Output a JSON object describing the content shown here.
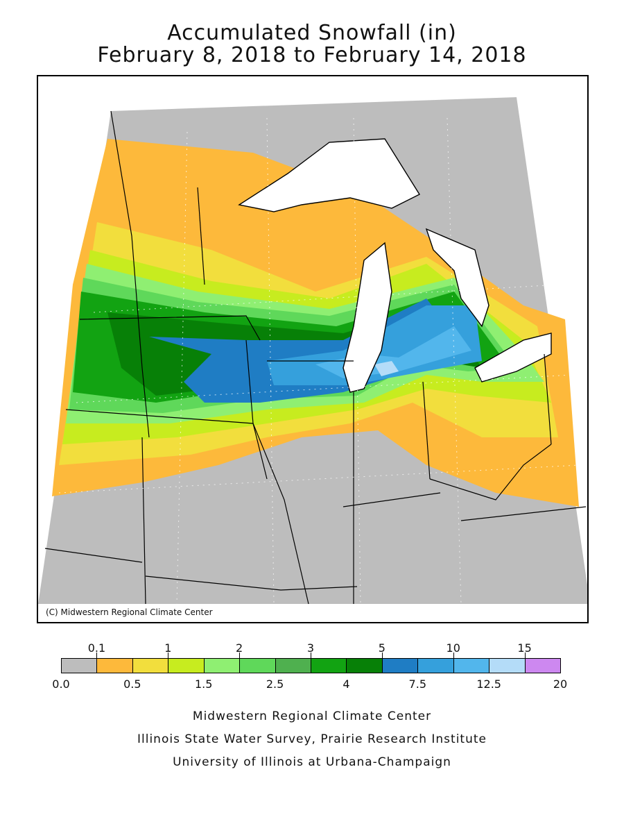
{
  "title": {
    "line1": "Accumulated Snowfall (in)",
    "line2": "February 8, 2018 to February 14, 2018"
  },
  "map": {
    "copyright": "(C) Midwestern Regional Climate Center",
    "colors": {
      "background": "#bdbdbd",
      "lake": "#ffffff",
      "border": "#000000"
    }
  },
  "legend": {
    "top_labels": [
      "0.1",
      "1",
      "2",
      "3",
      "5",
      "10",
      "15"
    ],
    "bottom_labels": [
      "0.0",
      "0.5",
      "1.5",
      "2.5",
      "4",
      "7.5",
      "12.5",
      "20"
    ],
    "bins": [
      {
        "color": "#bdbdbd"
      },
      {
        "color": "#fdb93b"
      },
      {
        "color": "#f2de3d"
      },
      {
        "color": "#c7ec1f"
      },
      {
        "color": "#8fef72"
      },
      {
        "color": "#5fd85a"
      },
      {
        "color": "#4fb04f"
      },
      {
        "color": "#12a312"
      },
      {
        "color": "#078007"
      },
      {
        "color": "#1f7dc4"
      },
      {
        "color": "#35a0dc"
      },
      {
        "color": "#52b6ec"
      },
      {
        "color": "#b4dcf8"
      },
      {
        "color": "#cd88f0"
      }
    ]
  },
  "footer": {
    "line1": "Midwestern Regional Climate Center",
    "line2": "Illinois State Water Survey, Prairie Research Institute",
    "line3": "University of Illinois at Urbana-Champaign"
  }
}
